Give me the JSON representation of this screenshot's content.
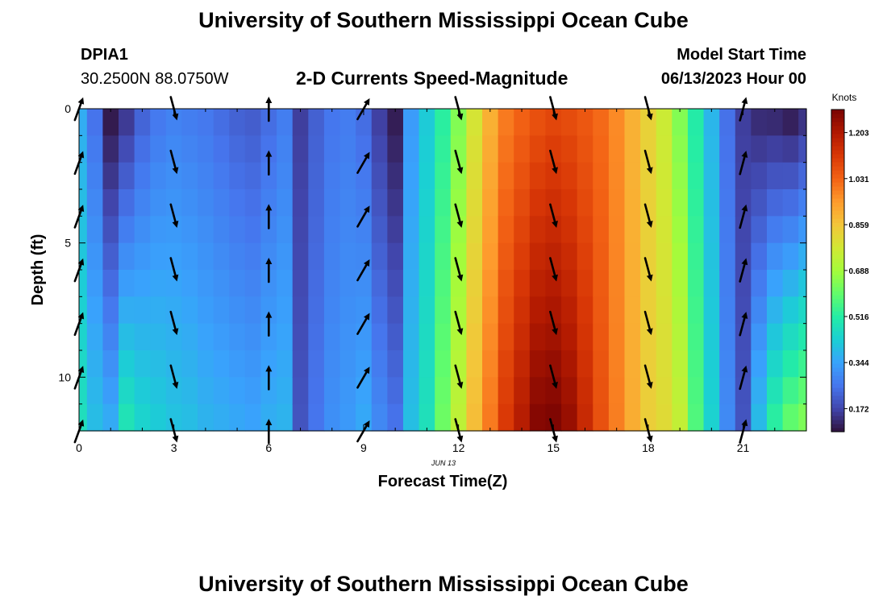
{
  "header": {
    "title": "University of Southern Mississippi Ocean Cube",
    "station": "DPIA1",
    "coords": "30.2500N  88.0750W",
    "subtitle": "2-D Currents Speed-Magnitude",
    "model_start_label": "Model Start Time",
    "model_start_value": "06/13/2023 Hour 00"
  },
  "footer": {
    "title": "University of Southern Mississippi Ocean Cube"
  },
  "colors": {
    "scale": [
      "#30123b",
      "#4145ab",
      "#4675ed",
      "#39a2fc",
      "#1bcfd4",
      "#24eca6",
      "#61fc6c",
      "#a4fc3b",
      "#d1e834",
      "#f3c63a",
      "#fe9b2d",
      "#f36315",
      "#d93806",
      "#b11901",
      "#7a0402"
    ],
    "arrow": "#000000"
  },
  "chart_data": {
    "type": "heatmap",
    "xlabel": "Forecast Time(Z)",
    "ylabel": "Depth (ft)",
    "date_label": "JUN 13",
    "colorbar_label": "Knots",
    "x_ticks": [
      "0",
      "3",
      "6",
      "9",
      "12",
      "15",
      "18",
      "21"
    ],
    "y_ticks": [
      "0",
      "5",
      "10"
    ],
    "xlim": [
      0,
      23
    ],
    "ylim": [
      0,
      12
    ],
    "color_range": [
      0.086,
      1.289
    ],
    "colorbar_ticks": [
      "0.172",
      "0.344",
      "0.516",
      "0.688",
      "0.859",
      "1.031",
      "1.203"
    ],
    "time_hours": [
      0,
      0.5,
      1,
      1.5,
      2,
      2.5,
      3,
      3.5,
      4,
      4.5,
      5,
      5.5,
      6,
      6.5,
      7,
      7.5,
      8,
      8.5,
      9,
      9.5,
      10,
      10.5,
      11,
      11.5,
      12,
      12.5,
      13,
      13.5,
      14,
      14.5,
      15,
      15.5,
      16,
      16.5,
      17,
      17.5,
      18,
      18.5,
      19,
      19.5,
      20,
      20.5,
      21,
      21.5,
      22,
      22.5,
      23
    ],
    "surface_speed": [
      0.36,
      0.25,
      0.09,
      0.14,
      0.22,
      0.26,
      0.28,
      0.27,
      0.26,
      0.24,
      0.22,
      0.21,
      0.24,
      0.27,
      0.16,
      0.22,
      0.26,
      0.27,
      0.24,
      0.16,
      0.1,
      0.33,
      0.42,
      0.52,
      0.64,
      0.78,
      0.9,
      0.99,
      1.03,
      1.06,
      1.08,
      1.07,
      1.05,
      1.02,
      0.97,
      0.9,
      0.83,
      0.76,
      0.64,
      0.51,
      0.38,
      0.25,
      0.16,
      0.12,
      0.11,
      0.09,
      0.12
    ],
    "bottom_speed": [
      0.48,
      0.4,
      0.37,
      0.5,
      0.45,
      0.43,
      0.41,
      0.4,
      0.38,
      0.37,
      0.36,
      0.35,
      0.37,
      0.38,
      0.2,
      0.26,
      0.31,
      0.33,
      0.36,
      0.3,
      0.26,
      0.4,
      0.48,
      0.62,
      0.74,
      0.88,
      1.0,
      1.12,
      1.2,
      1.28,
      1.29,
      1.25,
      1.16,
      1.07,
      0.99,
      0.91,
      0.84,
      0.81,
      0.75,
      0.58,
      0.44,
      0.3,
      0.2,
      0.4,
      0.54,
      0.62,
      0.66
    ],
    "arrow_hours": [
      0,
      3,
      6,
      9,
      12,
      15,
      18,
      21
    ],
    "arrow_depths": [
      0,
      2,
      4,
      6,
      8,
      10,
      12
    ],
    "arrow_direction_deg": [
      20,
      165,
      0,
      30,
      165,
      165,
      165,
      15
    ]
  }
}
